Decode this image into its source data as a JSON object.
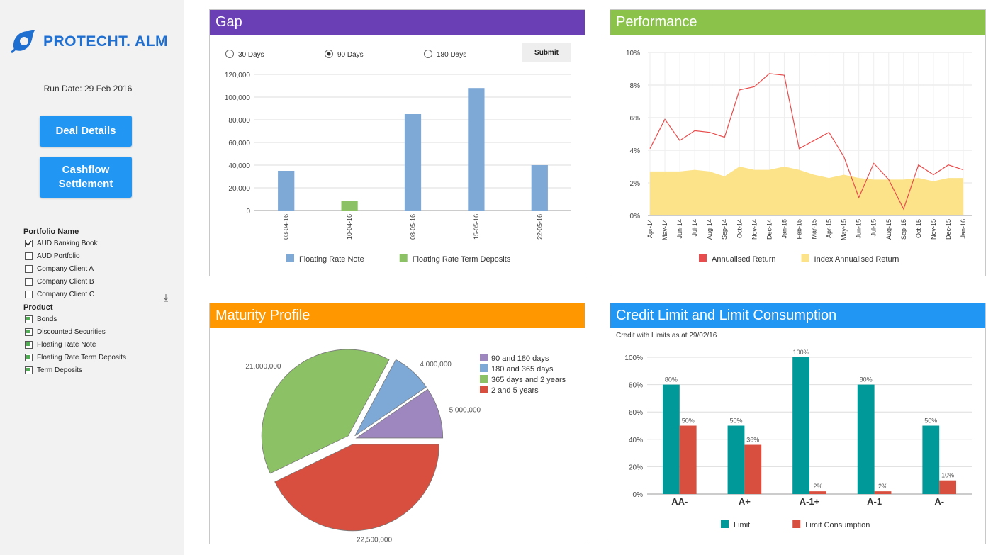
{
  "sidebar": {
    "logo": "PROTECHT. ALM",
    "run_date": "Run Date: 29 Feb 2016",
    "buttons": [
      "Deal Details",
      "Cashflow Settlement"
    ],
    "filters": [
      {
        "title": "Portfolio Name",
        "items": [
          {
            "label": "AUD Banking Book",
            "checked": true
          },
          {
            "label": "AUD Portfolio",
            "checked": false
          },
          {
            "label": "Company Client A",
            "checked": false
          },
          {
            "label": "Company Client B",
            "checked": false
          },
          {
            "label": "Company Client C",
            "checked": false
          }
        ]
      },
      {
        "title": "Product",
        "items": [
          {
            "label": "Bonds",
            "checked": true
          },
          {
            "label": "Discounted Securities",
            "checked": true
          },
          {
            "label": "Floating Rate Note",
            "checked": true
          },
          {
            "label": "Floating Rate Term Deposits",
            "checked": true
          },
          {
            "label": "Term Deposits",
            "checked": true
          }
        ]
      }
    ]
  },
  "chart_data": [
    {
      "type": "bar",
      "title": "Gap",
      "controls": {
        "options": [
          "30 Days",
          "90 Days",
          "180 Days"
        ],
        "selected": 1,
        "button": "Submit"
      },
      "categories": [
        "03-04-16",
        "10-04-16",
        "08-05-16",
        "15-05-16",
        "22-05-16"
      ],
      "rotate_x_labels": true,
      "series": [
        {
          "name": "Floating Rate Note",
          "color": "#7ea8d6",
          "values": [
            35000,
            null,
            85000,
            108000,
            40000
          ]
        },
        {
          "name": "Floating Rate Term Deposits",
          "color": "#8cc265",
          "values": [
            null,
            8500,
            null,
            null,
            null
          ]
        }
      ],
      "ylim": [
        0,
        120000
      ],
      "yticks": [
        0,
        {
          "value": 20000,
          "label": "20,000"
        },
        {
          "value": 40000,
          "label": "40,000"
        },
        {
          "value": 60000,
          "label": "60,000"
        },
        {
          "value": 80000,
          "label": "80,000"
        },
        {
          "value": 100000,
          "label": "100,000"
        },
        {
          "value": 120000,
          "label": "120,000"
        }
      ],
      "grid": true
    },
    {
      "type": "line",
      "title": "Performance",
      "categories": [
        "Apr-14",
        "May-14",
        "Jun-14",
        "Jul-14",
        "Aug-14",
        "Sep-14",
        "Oct-14",
        "Nov-14",
        "Dec-14",
        "Jan-15",
        "Feb-15",
        "Mar-15",
        "Apr-15",
        "May-15",
        "Jun-15",
        "Jul-15",
        "Aug-15",
        "Sep-15",
        "Oct-15",
        "Nov-15",
        "Dec-15",
        "Jan-16"
      ],
      "series": [
        {
          "name": "Annualised Return",
          "color": "#e84c4c",
          "values": [
            4.1,
            5.9,
            4.6,
            5.2,
            5.1,
            4.8,
            7.7,
            7.9,
            8.7,
            8.6,
            4.1,
            4.6,
            5.1,
            3.6,
            1.1,
            3.2,
            2.2,
            0.4,
            3.1,
            2.5,
            3.1,
            2.8
          ]
        },
        {
          "name": "Index Annualised Return",
          "color": "#fce38a",
          "area": true,
          "values": [
            2.7,
            2.7,
            2.7,
            2.8,
            2.7,
            2.4,
            3.0,
            2.8,
            2.8,
            3.0,
            2.8,
            2.5,
            2.3,
            2.5,
            2.3,
            2.2,
            2.2,
            2.2,
            2.3,
            2.1,
            2.3,
            2.3
          ]
        }
      ],
      "ylim": [
        0,
        10
      ],
      "yticks": [
        {
          "value": 0,
          "label": "0%"
        },
        {
          "value": 2,
          "label": "2%"
        },
        {
          "value": 4,
          "label": "4%"
        },
        {
          "value": 6,
          "label": "6%"
        },
        {
          "value": 8,
          "label": "8%"
        },
        {
          "value": 10,
          "label": "10%"
        }
      ],
      "grid": true,
      "rotate_x_labels": true
    },
    {
      "type": "pie",
      "title": "Maturity Profile",
      "categories": [
        "2 and 5 years",
        "365 days and 2 years",
        "180 and 365 days",
        "90 and 180 days"
      ],
      "values": [
        22500000,
        21000000,
        4000000,
        5000000
      ],
      "value_labels": [
        "22,500,000",
        "21,000,000",
        "4,000,000",
        "5,000,000"
      ],
      "colors": [
        "#d94f3f",
        "#8cc265",
        "#7ea8d6",
        "#9e86bf"
      ]
    },
    {
      "type": "bar",
      "title": "Credit Limit and Limit Consumption",
      "subtitle": "Credit with Limits as at 29/02/16",
      "categories": [
        "AA-",
        "A+",
        "A-1+",
        "A-1",
        "A-"
      ],
      "series": [
        {
          "name": "Limit",
          "color": "#009999",
          "values": [
            80,
            50,
            100,
            80,
            50
          ],
          "value_labels": [
            "80%",
            "50%",
            "100%",
            "80%",
            "50%"
          ]
        },
        {
          "name": "Limit Consumption",
          "color": "#d94f3f",
          "values": [
            50,
            36,
            2,
            2,
            10
          ],
          "value_labels": [
            "50%",
            "36%",
            "2%",
            "2%",
            "10%"
          ]
        }
      ],
      "ylim": [
        0,
        100
      ],
      "yticks": [
        {
          "value": 0,
          "label": "0%"
        },
        {
          "value": 20,
          "label": "20%"
        },
        {
          "value": 40,
          "label": "40%"
        },
        {
          "value": 60,
          "label": "60%"
        },
        {
          "value": 80,
          "label": "80%"
        },
        {
          "value": 100,
          "label": "100%"
        }
      ],
      "grid": true
    }
  ]
}
